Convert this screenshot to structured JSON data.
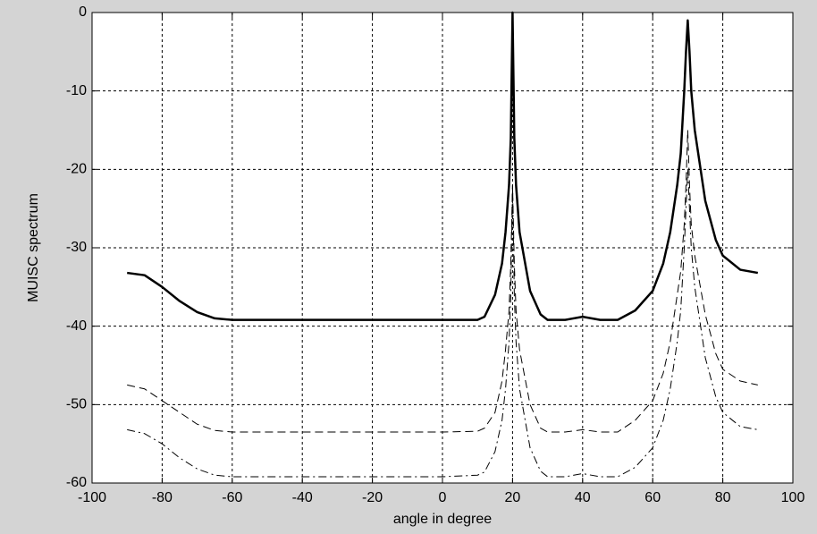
{
  "chart_data": {
    "type": "line",
    "xlabel": "angle in degree",
    "ylabel": "MUISC spectrum",
    "x": [
      -90,
      -85,
      -80,
      -75,
      -70,
      -65,
      -60,
      -40,
      -20,
      0,
      10,
      12,
      15,
      17,
      18,
      19,
      19.5,
      20,
      20.5,
      21,
      22,
      25,
      28,
      30,
      35,
      40,
      45,
      50,
      55,
      60,
      63,
      65,
      67,
      68,
      69,
      69.5,
      70,
      70.5,
      71,
      72,
      75,
      78,
      80,
      85,
      90
    ],
    "series": [
      {
        "color": "#000000",
        "dash": "solid",
        "values": [
          -33.2,
          -33.5,
          -35,
          -36.8,
          -38.2,
          -39,
          -39.2,
          -39.2,
          -39.2,
          -39.2,
          -39.2,
          -38.8,
          -36,
          -32,
          -28,
          -22,
          -16,
          0,
          -16,
          -22,
          -28,
          -35.5,
          -38.5,
          -39.2,
          -39.2,
          -38.8,
          -39.2,
          -39.2,
          -38,
          -35.5,
          -32,
          -28,
          -22,
          -18,
          -10,
          -5,
          -1,
          -5,
          -10,
          -15,
          -24,
          -29,
          -31,
          -32.8,
          -33.2
        ]
      },
      {
        "color": "#000000",
        "dash": "dashed",
        "values": [
          -47.5,
          -48,
          -49.5,
          -51,
          -52.5,
          -53.3,
          -53.5,
          -53.5,
          -53.5,
          -53.5,
          -53.4,
          -53,
          -51,
          -47,
          -43,
          -38,
          -32,
          -22,
          -32,
          -38,
          -43,
          -50,
          -53,
          -53.5,
          -53.5,
          -53.2,
          -53.5,
          -53.5,
          -52,
          -49.5,
          -46,
          -42,
          -36,
          -33,
          -27,
          -22,
          -15,
          -22,
          -27,
          -31,
          -38.5,
          -43.5,
          -45.5,
          -47,
          -47.5
        ]
      },
      {
        "color": "#000000",
        "dash": "dashdot",
        "values": [
          -53.2,
          -53.7,
          -55,
          -56.8,
          -58.2,
          -59,
          -59.2,
          -59.2,
          -59.2,
          -59.2,
          -59,
          -58.6,
          -56,
          -52,
          -48,
          -42,
          -36,
          -22,
          -36,
          -42,
          -48,
          -55.5,
          -58.5,
          -59.2,
          -59.2,
          -58.8,
          -59.2,
          -59.2,
          -58,
          -55.5,
          -52,
          -48,
          -42,
          -38,
          -30,
          -25,
          -20,
          -25,
          -30,
          -35,
          -44,
          -49,
          -51,
          -52.8,
          -53.2
        ]
      }
    ],
    "xlim": [
      -100,
      100
    ],
    "xticks": [
      -100,
      -80,
      -60,
      -40,
      -20,
      0,
      20,
      40,
      60,
      80,
      100
    ],
    "ylim": [
      -60,
      0
    ],
    "yticks": [
      -60,
      -50,
      -40,
      -30,
      -20,
      -10,
      0
    ],
    "grid": true
  }
}
